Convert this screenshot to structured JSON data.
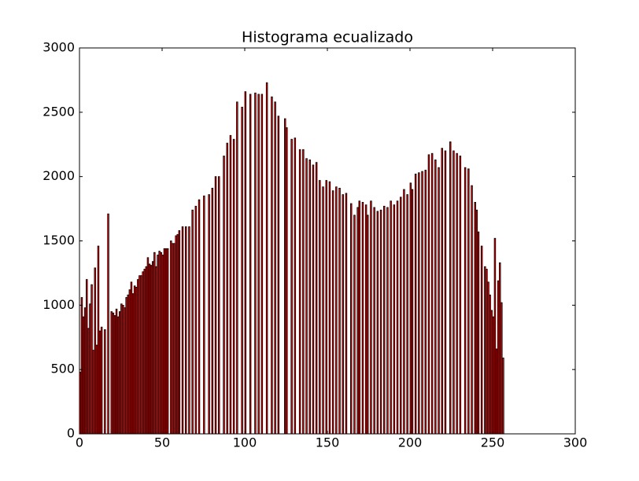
{
  "chart_data": {
    "type": "bar",
    "title": "Histograma ecualizado",
    "color": "#ff0000",
    "edgecolor": "#000000",
    "x": [
      0,
      1,
      2,
      3,
      4,
      5,
      6,
      7,
      8,
      9,
      10,
      11,
      12,
      13,
      15,
      17,
      19,
      20,
      21,
      22,
      23,
      24,
      25,
      26,
      27,
      28,
      29,
      30,
      31,
      32,
      33,
      34,
      35,
      36,
      37,
      38,
      39,
      40,
      41,
      42,
      43,
      44,
      45,
      46,
      47,
      48,
      49,
      50,
      51,
      52,
      53,
      55,
      56,
      57,
      58,
      59,
      60,
      62,
      64,
      66,
      68,
      70,
      72,
      75,
      78,
      80,
      82,
      84,
      87,
      89,
      91,
      93,
      95,
      98,
      100,
      103,
      106,
      108,
      110,
      113,
      116,
      118,
      120,
      124,
      125,
      128,
      130,
      133,
      135,
      137,
      139,
      141,
      143,
      145,
      147,
      149,
      151,
      153,
      155,
      157,
      159,
      161,
      164,
      166,
      168,
      169,
      171,
      173,
      174,
      176,
      178,
      180,
      182,
      184,
      186,
      188,
      190,
      192,
      194,
      196,
      198,
      200,
      201,
      203,
      205,
      207,
      209,
      211,
      213,
      215,
      217,
      219,
      221,
      224,
      226,
      228,
      230,
      233,
      235,
      237,
      239,
      240,
      241,
      243,
      245,
      246,
      247,
      248,
      249,
      250,
      251,
      252,
      253,
      254,
      255,
      256
    ],
    "values": [
      480,
      1060,
      910,
      980,
      1200,
      820,
      1010,
      1160,
      650,
      1290,
      690,
      1460,
      800,
      830,
      810,
      1710,
      950,
      940,
      920,
      970,
      910,
      950,
      1010,
      1000,
      980,
      1060,
      1080,
      1120,
      1180,
      1090,
      1150,
      1140,
      1200,
      1230,
      1230,
      1260,
      1280,
      1300,
      1370,
      1320,
      1310,
      1340,
      1410,
      1300,
      1390,
      1420,
      1410,
      1390,
      1440,
      1440,
      1440,
      1500,
      1480,
      1480,
      1540,
      1550,
      1580,
      1610,
      1610,
      1610,
      1740,
      1770,
      1820,
      1850,
      1860,
      1910,
      2000,
      2000,
      2160,
      2260,
      2320,
      2290,
      2580,
      2540,
      2660,
      2640,
      2650,
      2640,
      2640,
      2730,
      2620,
      2580,
      2470,
      2450,
      2380,
      2290,
      2300,
      2210,
      2210,
      2140,
      2130,
      2090,
      2110,
      1970,
      1920,
      1970,
      1960,
      1890,
      1920,
      1910,
      1860,
      1870,
      1790,
      1700,
      1760,
      1810,
      1800,
      1780,
      1700,
      1810,
      1760,
      1730,
      1740,
      1770,
      1760,
      1810,
      1780,
      1810,
      1840,
      1900,
      1860,
      1950,
      1900,
      2020,
      2030,
      2040,
      2050,
      2170,
      2180,
      2130,
      2070,
      2220,
      2200,
      2270,
      2200,
      2180,
      2160,
      2070,
      2060,
      1930,
      1800,
      1740,
      1570,
      1460,
      1300,
      1280,
      1180,
      1080,
      960,
      910,
      1520,
      660,
      1190,
      1330,
      1020,
      590
    ],
    "xlim": [
      0,
      300
    ],
    "xticks": [
      0,
      50,
      100,
      150,
      200,
      250,
      300
    ],
    "ylim": [
      0,
      3000
    ],
    "yticks": [
      0,
      500,
      1000,
      1500,
      2000,
      2500,
      3000
    ]
  }
}
